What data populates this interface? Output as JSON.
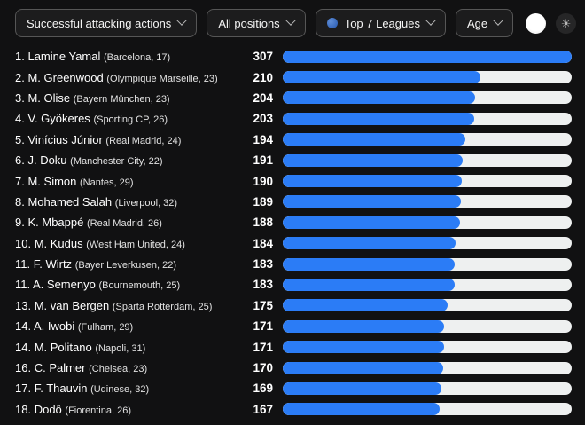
{
  "filters": {
    "stat_label": "Successful attacking actions",
    "positions_label": "All positions",
    "leagues_label": "Top 7 Leagues",
    "age_label": "Age"
  },
  "theme": {
    "sun_glyph": "☀"
  },
  "colors": {
    "background": "#111112",
    "bar_fill": "#2b7cf6",
    "bar_track": "#eef0f0",
    "dropdown_border": "#565656"
  },
  "chart_data": {
    "type": "bar",
    "orientation": "horizontal",
    "title": "Successful attacking actions",
    "max_value": 307,
    "categories": [
      "Lamine Yamal",
      "M. Greenwood",
      "M. Olise",
      "V. Gyökeres",
      "Vinícius Júnior",
      "J. Doku",
      "M. Simon",
      "Mohamed Salah",
      "K. Mbappé",
      "M. Kudus",
      "F. Wirtz",
      "A. Semenyo",
      "M. van Bergen",
      "A. Iwobi",
      "M. Politano",
      "C. Palmer",
      "F. Thauvin",
      "Dodô"
    ],
    "values": [
      307,
      210,
      204,
      203,
      194,
      191,
      190,
      189,
      188,
      184,
      183,
      183,
      175,
      171,
      171,
      170,
      169,
      167
    ],
    "players": [
      {
        "rank": "1.",
        "name": "Lamine Yamal",
        "team": "Barcelona",
        "age": 17,
        "value": 307
      },
      {
        "rank": "2.",
        "name": "M. Greenwood",
        "team": "Olympique Marseille",
        "age": 23,
        "value": 210
      },
      {
        "rank": "3.",
        "name": "M. Olise",
        "team": "Bayern München",
        "age": 23,
        "value": 204
      },
      {
        "rank": "4.",
        "name": "V. Gyökeres",
        "team": "Sporting CP",
        "age": 26,
        "value": 203
      },
      {
        "rank": "5.",
        "name": "Vinícius Júnior",
        "team": "Real Madrid",
        "age": 24,
        "value": 194
      },
      {
        "rank": "6.",
        "name": "J. Doku",
        "team": "Manchester City",
        "age": 22,
        "value": 191
      },
      {
        "rank": "7.",
        "name": "M. Simon",
        "team": "Nantes",
        "age": 29,
        "value": 190
      },
      {
        "rank": "8.",
        "name": "Mohamed Salah",
        "team": "Liverpool",
        "age": 32,
        "value": 189
      },
      {
        "rank": "9.",
        "name": "K. Mbappé",
        "team": "Real Madrid",
        "age": 26,
        "value": 188
      },
      {
        "rank": "10.",
        "name": "M. Kudus",
        "team": "West Ham United",
        "age": 24,
        "value": 184
      },
      {
        "rank": "11.",
        "name": "F. Wirtz",
        "team": "Bayer Leverkusen",
        "age": 22,
        "value": 183
      },
      {
        "rank": "11.",
        "name": "A. Semenyo",
        "team": "Bournemouth",
        "age": 25,
        "value": 183
      },
      {
        "rank": "13.",
        "name": "M. van Bergen",
        "team": "Sparta Rotterdam",
        "age": 25,
        "value": 175
      },
      {
        "rank": "14.",
        "name": "A. Iwobi",
        "team": "Fulham",
        "age": 29,
        "value": 171
      },
      {
        "rank": "14.",
        "name": "M. Politano",
        "team": "Napoli",
        "age": 31,
        "value": 171
      },
      {
        "rank": "16.",
        "name": "C. Palmer",
        "team": "Chelsea",
        "age": 23,
        "value": 170
      },
      {
        "rank": "17.",
        "name": "F. Thauvin",
        "team": "Udinese",
        "age": 32,
        "value": 169
      },
      {
        "rank": "18.",
        "name": "Dodô",
        "team": "Fiorentina",
        "age": 26,
        "value": 167
      }
    ]
  }
}
